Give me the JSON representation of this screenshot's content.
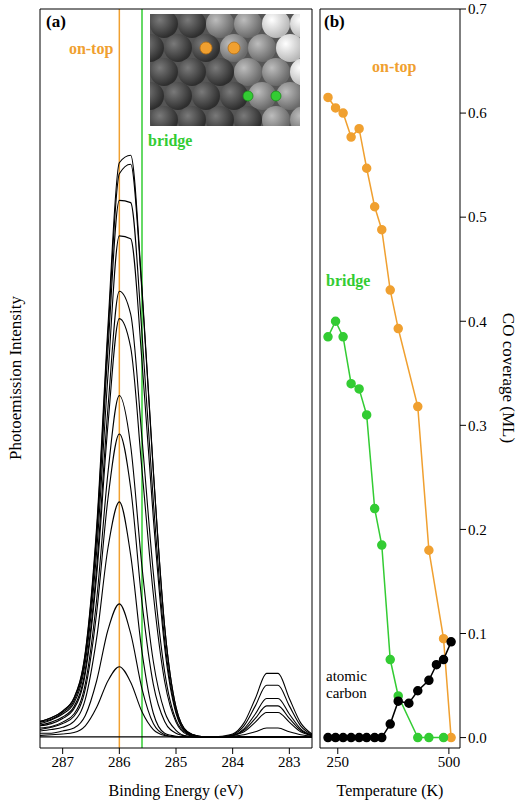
{
  "chart_data": [
    {
      "type": "line",
      "title": "(a)",
      "x_label": "Binding Energy (eV)",
      "y_label": "Photoemission Intensity",
      "xlim": [
        287.4,
        282.6
      ],
      "xticks": [
        287,
        286,
        285,
        284,
        283
      ],
      "ylim": [
        0,
        1
      ],
      "tick_labels": "x",
      "color": "#000000",
      "x": [
        287.4,
        287.2,
        287.0,
        286.8,
        286.6,
        286.4,
        286.2,
        286.0,
        285.8,
        285.6,
        285.4,
        285.2,
        285.0,
        284.8,
        284.6,
        284.4,
        284.2,
        284.0,
        283.8,
        283.6,
        283.4,
        283.2,
        283.0,
        282.8,
        282.6
      ],
      "series": [
        {
          "values": [
            0.036,
            0.041,
            0.05,
            0.068,
            0.13,
            0.3,
            0.572,
            0.792,
            0.802,
            0.622,
            0.376,
            0.164,
            0.055,
            0.022,
            0.016,
            0.015,
            0.015,
            0.015,
            0.015,
            0.015,
            0.015,
            0.015,
            0.015,
            0.015,
            0.015
          ]
        },
        {
          "values": [
            0.036,
            0.041,
            0.05,
            0.067,
            0.128,
            0.293,
            0.56,
            0.777,
            0.79,
            0.617,
            0.374,
            0.164,
            0.055,
            0.022,
            0.016,
            0.015,
            0.015,
            0.015,
            0.015,
            0.015,
            0.015,
            0.015,
            0.015,
            0.015,
            0.015
          ]
        },
        {
          "values": [
            0.035,
            0.039,
            0.048,
            0.064,
            0.123,
            0.284,
            0.54,
            0.741,
            0.738,
            0.561,
            0.334,
            0.146,
            0.05,
            0.021,
            0.016,
            0.015,
            0.015,
            0.015,
            0.015,
            0.015,
            0.015,
            0.015,
            0.015,
            0.015,
            0.015
          ]
        },
        {
          "values": [
            0.033,
            0.038,
            0.046,
            0.061,
            0.116,
            0.266,
            0.505,
            0.693,
            0.689,
            0.523,
            0.311,
            0.136,
            0.047,
            0.02,
            0.016,
            0.015,
            0.015,
            0.015,
            0.015,
            0.015,
            0.015,
            0.015,
            0.015,
            0.015,
            0.015
          ]
        },
        {
          "values": [
            0.031,
            0.035,
            0.042,
            0.056,
            0.106,
            0.244,
            0.461,
            0.618,
            0.587,
            0.419,
            0.237,
            0.103,
            0.038,
            0.019,
            0.015,
            0.015,
            0.015,
            0.015,
            0.015,
            0.015,
            0.015,
            0.015,
            0.015,
            0.015,
            0.015
          ]
        },
        {
          "values": [
            0.03,
            0.033,
            0.04,
            0.053,
            0.101,
            0.233,
            0.438,
            0.581,
            0.542,
            0.376,
            0.208,
            0.09,
            0.035,
            0.018,
            0.015,
            0.015,
            0.015,
            0.015,
            0.015,
            0.015,
            0.015,
            0.015,
            0.015,
            0.015,
            0.015
          ]
        },
        {
          "values": [
            0.027,
            0.029,
            0.035,
            0.046,
            0.087,
            0.201,
            0.373,
            0.477,
            0.409,
            0.245,
            0.117,
            0.049,
            0.024,
            0.016,
            0.015,
            0.015,
            0.015,
            0.016,
            0.018,
            0.022,
            0.027,
            0.027,
            0.022,
            0.018,
            0.016
          ]
        },
        {
          "values": [
            0.025,
            0.028,
            0.033,
            0.043,
            0.08,
            0.183,
            0.338,
            0.425,
            0.352,
            0.197,
            0.086,
            0.036,
            0.02,
            0.016,
            0.015,
            0.015,
            0.015,
            0.017,
            0.022,
            0.035,
            0.048,
            0.048,
            0.035,
            0.022,
            0.017
          ]
        },
        {
          "values": [
            0.023,
            0.025,
            0.028,
            0.036,
            0.066,
            0.149,
            0.271,
            0.333,
            0.261,
            0.13,
            0.047,
            0.02,
            0.016,
            0.015,
            0.015,
            0.015,
            0.015,
            0.017,
            0.024,
            0.04,
            0.057,
            0.057,
            0.04,
            0.024,
            0.017
          ]
        },
        {
          "values": [
            0.02,
            0.02,
            0.023,
            0.027,
            0.044,
            0.091,
            0.16,
            0.195,
            0.155,
            0.08,
            0.033,
            0.018,
            0.015,
            0.015,
            0.015,
            0.015,
            0.015,
            0.017,
            0.026,
            0.046,
            0.067,
            0.067,
            0.046,
            0.026,
            0.017
          ]
        },
        {
          "values": [
            0.017,
            0.018,
            0.019,
            0.021,
            0.03,
            0.055,
            0.091,
            0.11,
            0.089,
            0.049,
            0.025,
            0.017,
            0.015,
            0.015,
            0.015,
            0.015,
            0.015,
            0.018,
            0.03,
            0.057,
            0.085,
            0.085,
            0.057,
            0.03,
            0.018
          ]
        },
        {
          "values": [
            0.015,
            0.015,
            0.015,
            0.015,
            0.015,
            0.015,
            0.015,
            0.015,
            0.015,
            0.015,
            0.015,
            0.015,
            0.015,
            0.015,
            0.015,
            0.015,
            0.016,
            0.019,
            0.034,
            0.067,
            0.101,
            0.101,
            0.067,
            0.034,
            0.019
          ]
        }
      ],
      "annotations": [
        {
          "text": "on-top",
          "x": 286.0,
          "color": "#f0a030"
        },
        {
          "text": "bridge",
          "x": 285.6,
          "color": "#33cc33"
        }
      ]
    },
    {
      "type": "line",
      "title": "(b)",
      "x_label": "Temperature (K)",
      "y_label": "CO coverage (ML)",
      "xlim": [
        210,
        525
      ],
      "xticks": [
        250,
        500
      ],
      "ylim": [
        -0.01,
        0.7
      ],
      "yticks": [
        {
          "value": 0,
          "label": "0.0"
        },
        0.1,
        0.2,
        0.3,
        0.4,
        0.5,
        0.6,
        0.7
      ],
      "marker": "circle",
      "series": [
        {
          "name": "on-top",
          "color": "#f0a030",
          "x": [
            228,
            245,
            262,
            280,
            298,
            315,
            333,
            349,
            368,
            386,
            430,
            455,
            488,
            505
          ],
          "values": [
            0.615,
            0.605,
            0.6,
            0.577,
            0.585,
            0.547,
            0.51,
            0.488,
            0.43,
            0.393,
            0.318,
            0.18,
            0.095,
            0.0
          ]
        },
        {
          "name": "bridge",
          "color": "#33cc33",
          "x": [
            228,
            245,
            262,
            280,
            298,
            315,
            333,
            349,
            368,
            386,
            430,
            455,
            488
          ],
          "values": [
            0.385,
            0.4,
            0.385,
            0.34,
            0.335,
            0.31,
            0.22,
            0.185,
            0.075,
            0.04,
            0.0,
            0.0,
            0.0
          ]
        },
        {
          "name": "atomic carbon",
          "color": "#000000",
          "x": [
            228,
            245,
            262,
            280,
            298,
            315,
            333,
            349,
            368,
            386,
            410,
            430,
            455,
            472,
            488,
            505
          ],
          "values": [
            0,
            0,
            0,
            0,
            0,
            0,
            0,
            0,
            0.013,
            0.035,
            0.033,
            0.045,
            0.055,
            0.07,
            0.075,
            0.092
          ]
        }
      ]
    }
  ]
}
